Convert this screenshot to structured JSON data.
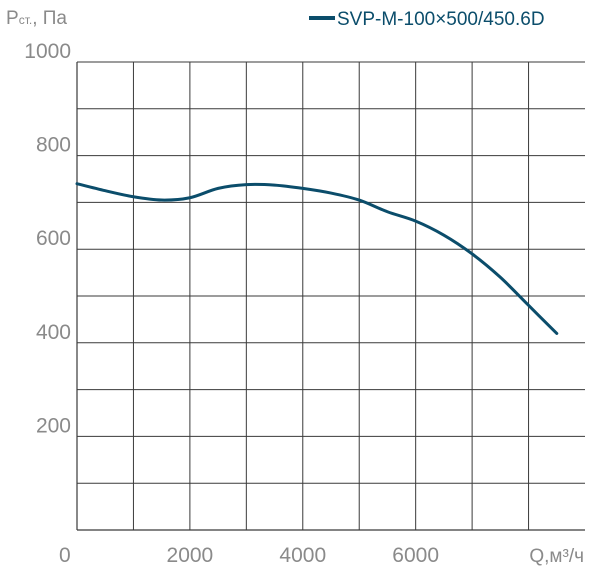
{
  "chart_data": {
    "type": "line",
    "ylabel_main": "P",
    "ylabel_sub": "ст.",
    "ylabel_unit": ", Па",
    "xlabel": "Q,м³/ч",
    "xlim": [
      0,
      9000
    ],
    "ylim": [
      0,
      1000
    ],
    "x_ticks": [
      0,
      2000,
      4000,
      6000
    ],
    "y_ticks": [
      200,
      400,
      600,
      800,
      1000
    ],
    "grid": true,
    "legend_position": "top-right",
    "series": [
      {
        "name": "SVP-M-100×500/450.6D",
        "color": "#0b4d6b",
        "x": [
          0,
          500,
          1000,
          1500,
          2000,
          2500,
          3000,
          3500,
          4000,
          4500,
          5000,
          5500,
          6000,
          6500,
          7000,
          7500,
          8000,
          8500
        ],
        "y": [
          740,
          725,
          712,
          705,
          710,
          730,
          738,
          737,
          730,
          720,
          705,
          680,
          660,
          630,
          590,
          540,
          480,
          420
        ]
      }
    ]
  }
}
